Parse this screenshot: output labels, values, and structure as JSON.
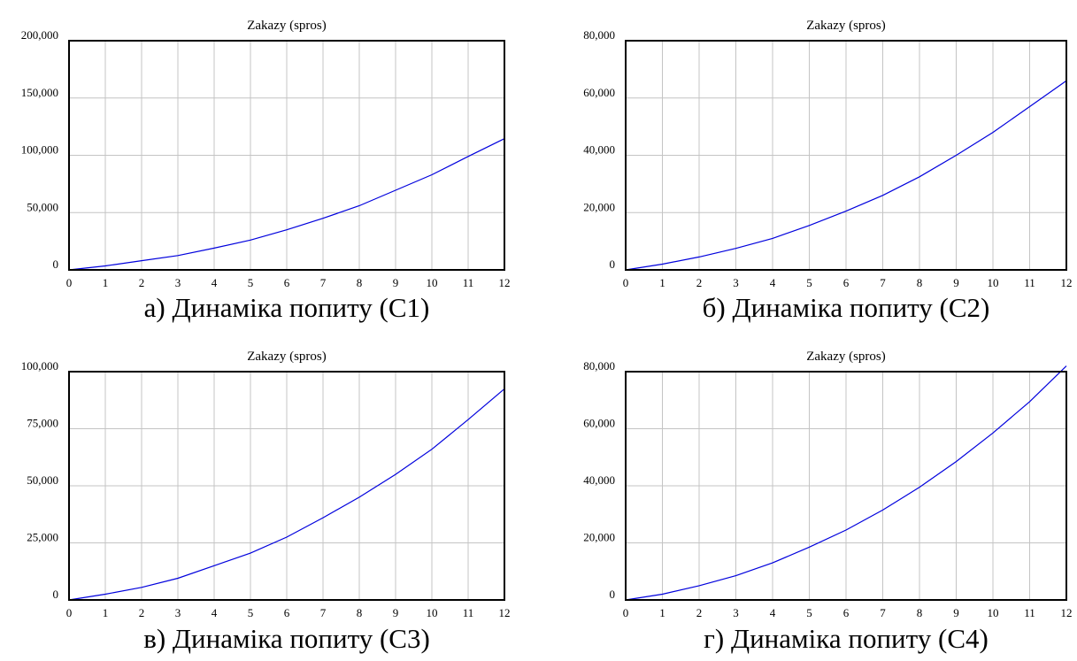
{
  "chart_data": [
    {
      "type": "line",
      "title": "Zakazy (spros)",
      "caption": "а) Динаміка попиту (С1)",
      "x": [
        0,
        1,
        2,
        3,
        4,
        5,
        6,
        7,
        8,
        9,
        10,
        11,
        12
      ],
      "series": [
        {
          "values": [
            0,
            3500,
            8000,
            12500,
            19000,
            26000,
            35000,
            45000,
            56000,
            69500,
            83000,
            99000,
            114500
          ]
        }
      ],
      "xticks": [
        "0",
        "1",
        "2",
        "3",
        "4",
        "5",
        "6",
        "7",
        "8",
        "9",
        "10",
        "11",
        "12"
      ],
      "yticks": [
        {
          "value": 0,
          "label": "0"
        },
        {
          "value": 50000,
          "label": "50,000"
        },
        {
          "value": 100000,
          "label": "100,000"
        },
        {
          "value": 150000,
          "label": "150,000"
        },
        {
          "value": 200000,
          "label": "200,000"
        }
      ],
      "xlim": [
        0,
        12
      ],
      "ylim": [
        0,
        200000
      ],
      "grid": true,
      "line_color": "#0000dd"
    },
    {
      "type": "line",
      "title": "Zakazy (spros)",
      "caption": "б) Динаміка попиту (С2)",
      "x": [
        0,
        1,
        2,
        3,
        4,
        5,
        6,
        7,
        8,
        9,
        10,
        11,
        12
      ],
      "series": [
        {
          "values": [
            0,
            2000,
            4500,
            7500,
            11000,
            15500,
            20500,
            26000,
            32500,
            40000,
            48000,
            57000,
            66000
          ]
        }
      ],
      "xticks": [
        "0",
        "1",
        "2",
        "3",
        "4",
        "5",
        "6",
        "7",
        "8",
        "9",
        "10",
        "11",
        "12"
      ],
      "yticks": [
        {
          "value": 0,
          "label": "0"
        },
        {
          "value": 20000,
          "label": "20,000"
        },
        {
          "value": 40000,
          "label": "40,000"
        },
        {
          "value": 60000,
          "label": "60,000"
        },
        {
          "value": 80000,
          "label": "80,000"
        }
      ],
      "xlim": [
        0,
        12
      ],
      "ylim": [
        0,
        80000
      ],
      "grid": true,
      "line_color": "#0000dd"
    },
    {
      "type": "line",
      "title": "Zakazy (spros)",
      "caption": "в) Динаміка попиту (С3)",
      "x": [
        0,
        1,
        2,
        3,
        4,
        5,
        6,
        7,
        8,
        9,
        10,
        11,
        12
      ],
      "series": [
        {
          "values": [
            0,
            2500,
            5500,
            9500,
            15000,
            20500,
            27500,
            36000,
            45000,
            55000,
            66000,
            79000,
            92500
          ]
        }
      ],
      "xticks": [
        "0",
        "1",
        "2",
        "3",
        "4",
        "5",
        "6",
        "7",
        "8",
        "9",
        "10",
        "11",
        "12"
      ],
      "yticks": [
        {
          "value": 0,
          "label": "0"
        },
        {
          "value": 25000,
          "label": "25,000"
        },
        {
          "value": 50000,
          "label": "50,000"
        },
        {
          "value": 75000,
          "label": "75,000"
        },
        {
          "value": 100000,
          "label": "100,000"
        }
      ],
      "xlim": [
        0,
        12
      ],
      "ylim": [
        0,
        100000
      ],
      "grid": true,
      "line_color": "#0000dd"
    },
    {
      "type": "line",
      "title": "Zakazy (spros)",
      "caption": "г) Динаміка попиту (С4)",
      "x": [
        0,
        1,
        2,
        3,
        4,
        5,
        6,
        7,
        8,
        9,
        10,
        11,
        12
      ],
      "series": [
        {
          "values": [
            0,
            2000,
            5000,
            8500,
            13000,
            18500,
            24500,
            31500,
            39500,
            48500,
            58500,
            69500,
            82000
          ]
        }
      ],
      "xticks": [
        "0",
        "1",
        "2",
        "3",
        "4",
        "5",
        "6",
        "7",
        "8",
        "9",
        "10",
        "11",
        "12"
      ],
      "yticks": [
        {
          "value": 0,
          "label": "0"
        },
        {
          "value": 20000,
          "label": "20,000"
        },
        {
          "value": 40000,
          "label": "40,000"
        },
        {
          "value": 60000,
          "label": "60,000"
        },
        {
          "value": 80000,
          "label": "80,000"
        }
      ],
      "xlim": [
        0,
        12
      ],
      "ylim": [
        0,
        80000
      ],
      "grid": true,
      "line_color": "#0000dd"
    }
  ]
}
